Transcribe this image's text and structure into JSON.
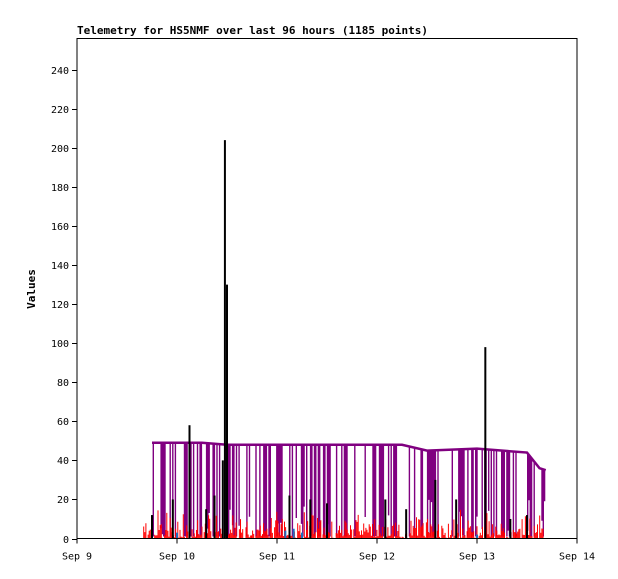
{
  "chart_data": {
    "type": "line",
    "title": "Telemetry for HS5NMF over last 96 hours (1185 points)",
    "xlabel": "",
    "ylabel": "Values",
    "x_ticks": [
      "Sep 9",
      "Sep 10",
      "Sep 11",
      "Sep 12",
      "Sep 13",
      "Sep 14"
    ],
    "y_ticks": [
      0,
      20,
      40,
      60,
      80,
      100,
      120,
      140,
      160,
      180,
      200,
      220,
      240
    ],
    "xlim": [
      "2023-09-09 00:00",
      "2023-09-14 00:00"
    ],
    "ylim": [
      0,
      256
    ],
    "grid": false,
    "legend": "none",
    "series": [
      {
        "color": "#800080",
        "style": "band",
        "x": [
          "2023-09-09 18:00",
          "2023-09-10 06:00",
          "2023-09-10 12:00",
          "2023-09-11 00:00",
          "2023-09-11 12:00",
          "2023-09-12 00:00",
          "2023-09-12 06:00",
          "2023-09-12 12:00",
          "2023-09-13 00:00",
          "2023-09-13 12:00",
          "2023-09-13 15:00",
          "2023-09-13 16:30"
        ],
        "values": [
          49,
          49,
          48,
          48,
          48,
          48,
          48,
          45,
          46,
          44,
          36,
          35
        ],
        "low": 1
      },
      {
        "color": "#ff0000",
        "style": "noise",
        "x": [
          "2023-09-09 16:00",
          "2023-09-13 16:00"
        ],
        "range": [
          0,
          16
        ]
      },
      {
        "color": "#000000",
        "style": "spikes",
        "x": [
          "2023-09-09 18:00",
          "2023-09-09 23:00",
          "2023-09-10 03:00",
          "2023-09-10 07:00",
          "2023-09-10 09:00",
          "2023-09-10 11:00",
          "2023-09-10 11:30",
          "2023-09-10 12:00",
          "2023-09-11 03:00",
          "2023-09-11 08:00",
          "2023-09-11 12:00",
          "2023-09-12 02:00",
          "2023-09-12 07:00",
          "2023-09-12 14:00",
          "2023-09-12 19:00",
          "2023-09-13 02:00",
          "2023-09-13 08:00",
          "2023-09-13 12:00"
        ],
        "values": [
          12,
          20,
          58,
          15,
          22,
          40,
          204,
          130,
          22,
          20,
          18,
          20,
          15,
          30,
          20,
          98,
          10,
          12
        ]
      },
      {
        "color": "#1f6fbf",
        "style": "spikes",
        "x": [
          "2023-09-10 00:00",
          "2023-09-11 02:00",
          "2023-09-11 04:00",
          "2023-09-11 06:00",
          "2023-09-13 00:00"
        ],
        "values": [
          3,
          4,
          5,
          3,
          2
        ]
      }
    ]
  }
}
